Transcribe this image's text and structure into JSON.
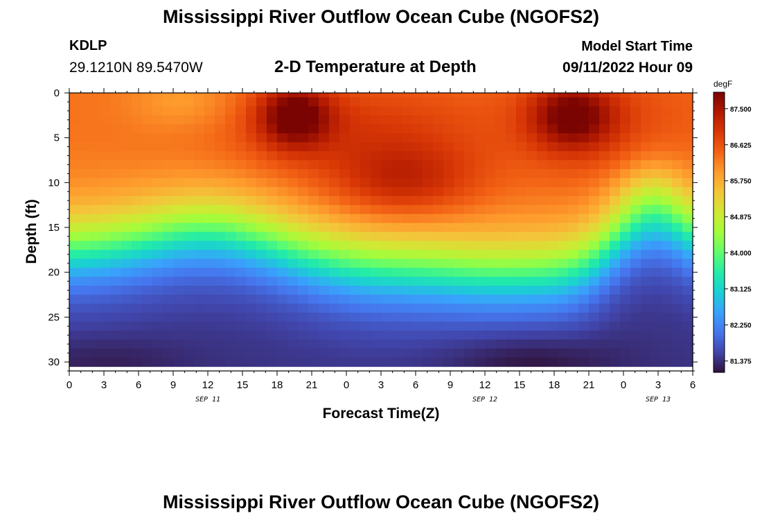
{
  "header": {
    "title": "Mississippi River Outflow Ocean Cube (NGOFS2)",
    "station": "KDLP",
    "coordinates": "29.1210N  89.5470W",
    "subtitle": "2-D Temperature at Depth",
    "model_start_label": "Model Start Time",
    "model_start_value": "09/11/2022 Hour 09"
  },
  "footer": {
    "title": "Mississippi River Outflow Ocean Cube (NGOFS2)"
  },
  "chart_data": {
    "type": "heatmap",
    "title": "2-D Temperature at Depth",
    "xlabel": "Forecast Time(Z)",
    "ylabel": "Depth (ft)",
    "colorbar_units": "degF",
    "x_ticks": [
      "0",
      "3",
      "6",
      "9",
      "12",
      "15",
      "18",
      "21",
      "0",
      "3",
      "6",
      "9",
      "12",
      "15",
      "18",
      "21",
      "0",
      "3",
      "6"
    ],
    "date_labels": [
      {
        "label": "SEP 11",
        "hour": 12
      },
      {
        "label": "SEP 12",
        "hour": 36
      },
      {
        "label": "SEP 13",
        "hour": 51
      }
    ],
    "xlim": [
      0,
      54
    ],
    "y_ticks": [
      0,
      5,
      10,
      15,
      20,
      25,
      30
    ],
    "ylim": [
      0,
      31
    ],
    "colorbar_ticks": [
      "81.375",
      "82.250",
      "83.125",
      "84.000",
      "84.875",
      "85.750",
      "86.625",
      "87.500"
    ],
    "value_range": [
      81.1,
      87.9
    ],
    "colormap": [
      "#30123b",
      "#4145ab",
      "#4675ed",
      "#39a2fc",
      "#1bcfd4",
      "#24eca6",
      "#61fc6c",
      "#a4fc3b",
      "#d1e834",
      "#f3c63a",
      "#fe9b2d",
      "#f36315",
      "#d93806",
      "#b11901",
      "#7a0402"
    ],
    "grid_shape": "60 time steps x 31 depth levels (0-30 ft)",
    "description_of_field": "Warm (86-88 degF) surface layer with two daily maxima near hours 18-21 at ~3 ft; thermocline between ~12 and 22 ft whose depth oscillates (shallower near hours 12 and 51, deeper near hours 24-30); coolest water (~81.2 degF) at 28-31 ft, especially near hour 38-42."
  }
}
